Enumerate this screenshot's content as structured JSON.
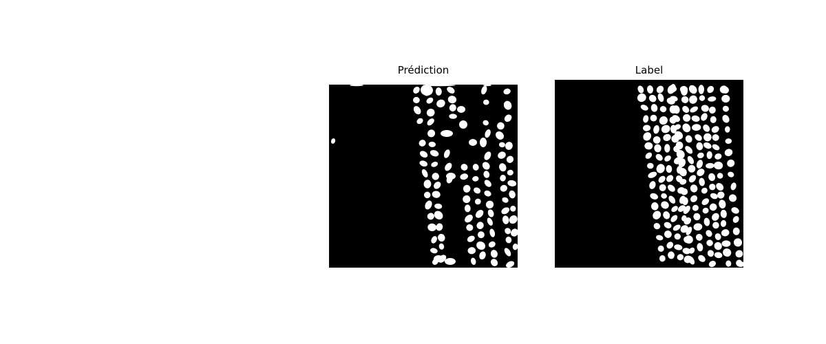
{
  "figure": {
    "panels": [
      {
        "id": "prediction",
        "title": "Prédiction",
        "content": "binary segmentation mask (white cells on black background)"
      },
      {
        "id": "label",
        "title": "Label",
        "content": "binary segmentation mask (white cells on black background)"
      }
    ]
  },
  "colors": {
    "background": "#000000",
    "foreground": "#ffffff",
    "figure_background": "#ffffff"
  }
}
